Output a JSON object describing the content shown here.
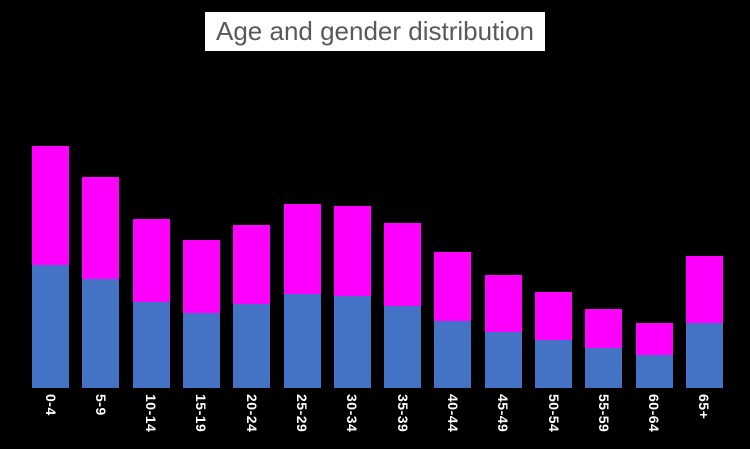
{
  "title": {
    "text": "Age and gender distribution",
    "background": "#ffffff",
    "text_color": "#595959"
  },
  "page": {
    "background": "#000000",
    "tick_label_color": "#ffffff"
  },
  "chart_data": {
    "type": "bar",
    "stacked": true,
    "title": "Age and gender distribution",
    "xlabel": "",
    "ylabel": "",
    "categories": [
      "0-4",
      "5-9",
      "10-14",
      "15-19",
      "20-24",
      "25-29",
      "30-34",
      "35-39",
      "40-44",
      "45-49",
      "50-54",
      "55-59",
      "60-64",
      "65+"
    ],
    "series": [
      {
        "name": "gender-segment-bottom-blue",
        "color": "#4472C4",
        "values": [
          5.9,
          5.2,
          4.1,
          3.6,
          4.0,
          4.5,
          4.4,
          3.9,
          3.2,
          2.7,
          2.3,
          1.9,
          1.6,
          3.1
        ]
      },
      {
        "name": "gender-segment-top-magenta",
        "color": "#FF00FF",
        "values": [
          5.7,
          4.9,
          4.0,
          3.5,
          3.8,
          4.3,
          4.3,
          4.0,
          3.3,
          2.7,
          2.3,
          1.9,
          1.5,
          3.2
        ]
      }
    ],
    "units": "estimated percent of total (no y-axis shown)",
    "ylim": [
      0,
      12
    ],
    "grid": false,
    "legend": "none",
    "x_tick_rotation_deg": 90
  }
}
